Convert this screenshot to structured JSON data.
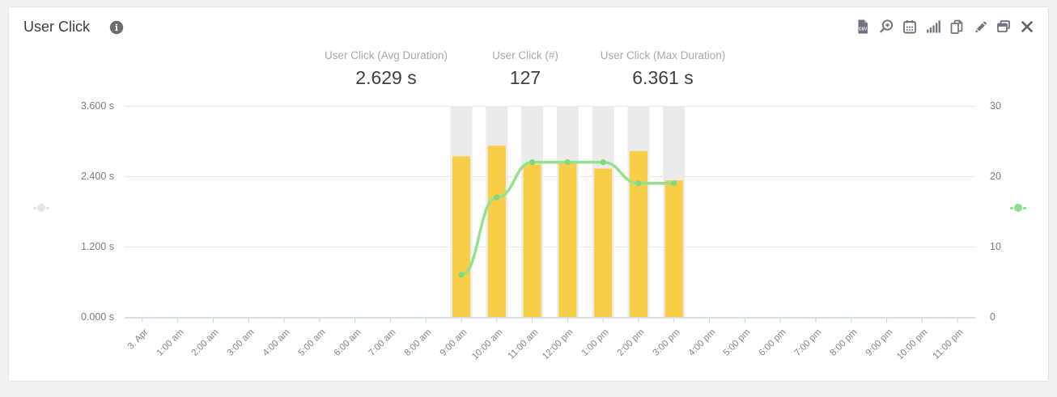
{
  "header": {
    "title": "User Click",
    "info_icon": "info-icon"
  },
  "toolbar": {
    "icons": [
      "csv-export-icon",
      "zoom-in-icon",
      "calendar-icon",
      "chart-bars-icon",
      "copy-icon",
      "edit-icon",
      "window-icon",
      "close-icon"
    ]
  },
  "metrics": [
    {
      "label": "User Click (Avg Duration)",
      "value": "2.629 s"
    },
    {
      "label": "User Click (#)",
      "value": "127"
    },
    {
      "label": "User Click (Max Duration)",
      "value": "6.361 s"
    }
  ],
  "chart_data": {
    "type": "combo",
    "categories": [
      "3. Apr",
      "1:00 am",
      "2:00 am",
      "3:00 am",
      "4:00 am",
      "5:00 am",
      "6:00 am",
      "7:00 am",
      "8:00 am",
      "9:00 am",
      "10:00 am",
      "11:00 am",
      "12:00 pm",
      "1:00 pm",
      "2:00 pm",
      "3:00 pm",
      "4:00 pm",
      "5:00 pm",
      "6:00 pm",
      "7:00 pm",
      "8:00 pm",
      "9:00 pm",
      "10:00 pm",
      "11:00 pm"
    ],
    "series": [
      {
        "name": "User Click (Avg Duration)",
        "type": "bar",
        "axis": "left",
        "unit": "s",
        "color": "#f7ce45",
        "start_index": 9,
        "values": [
          2.74,
          2.92,
          2.6,
          2.63,
          2.53,
          2.83,
          2.33
        ]
      },
      {
        "name": "User Click (#)",
        "type": "line",
        "axis": "right",
        "color": "#95e28e",
        "marker_color": "#7dd97a",
        "start_index": 9,
        "values": [
          6,
          17,
          22,
          22,
          22,
          19,
          19
        ]
      }
    ],
    "background_columns": {
      "color": "#ebebeb",
      "start_index": 9,
      "count": 7
    },
    "left_axis": {
      "min": 0,
      "max": 3.6,
      "tick_labels": [
        "3.600 s",
        "2.400 s",
        "1.200 s",
        "0.000 s"
      ]
    },
    "right_axis": {
      "min": 0,
      "max": 30,
      "tick_labels": [
        "30",
        "20",
        "10",
        "0"
      ]
    },
    "grid": true,
    "grid_color": "#e7e7e7",
    "axis_line_color": "#ccd3e3",
    "tick_color": "#c9cfdf",
    "legend_position": "none",
    "handles": {
      "left_color": "#e4e4e4",
      "right_color": "#8ee18a"
    }
  }
}
